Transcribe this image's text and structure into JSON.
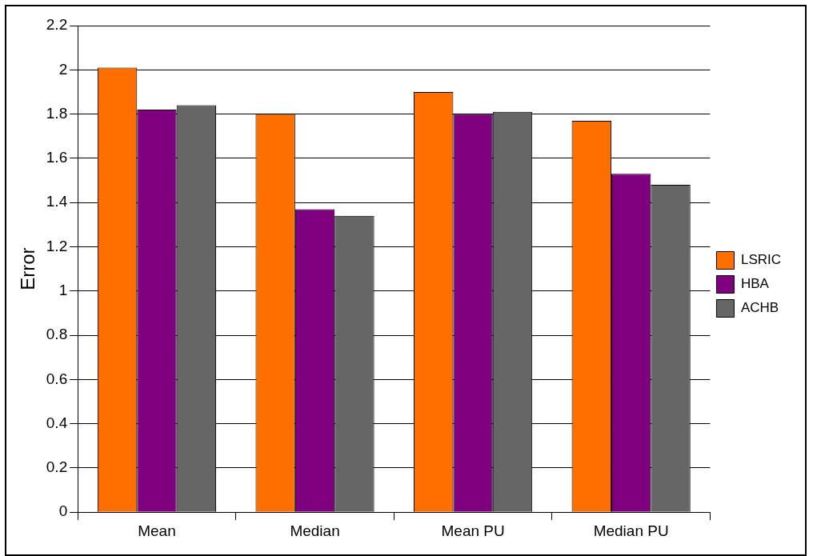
{
  "chart_data": {
    "type": "bar",
    "ylabel": "Error",
    "categories": [
      "Mean",
      "Median",
      "Mean PU",
      "Median PU"
    ],
    "series": [
      {
        "name": "LSRIC",
        "color": "#ff6f00",
        "values": [
          2.01,
          1.8,
          1.9,
          1.77
        ]
      },
      {
        "name": "HBA",
        "color": "#7f007f",
        "values": [
          1.82,
          1.37,
          1.8,
          1.53
        ]
      },
      {
        "name": "ACHB",
        "color": "#666666",
        "values": [
          1.84,
          1.34,
          1.81,
          1.48
        ]
      }
    ],
    "ylim": [
      0,
      2.2
    ],
    "yticks": [
      0,
      0.2,
      0.4,
      0.6,
      0.8,
      1,
      1.2,
      1.4,
      1.6,
      1.8,
      2,
      2.2
    ],
    "grid": "y",
    "legend": "right"
  }
}
